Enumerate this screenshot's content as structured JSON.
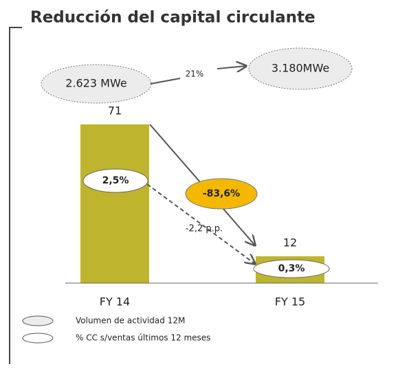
{
  "chart_data": {
    "type": "bar",
    "title": "Reducción del capital circulante",
    "categories": [
      "FY 14",
      "FY 15"
    ],
    "values": [
      71,
      12
    ],
    "color": "#bfb42e",
    "annotations": {
      "volume_fy14": "2.623 MWe",
      "volume_fy15": "3.180MWe",
      "volume_growth": "21%",
      "reduction": "-83,6%",
      "ratio_fy14": "2,5%",
      "ratio_fy15": "0,3%",
      "ratio_change": "-2,2 p.p."
    },
    "legend": [
      "Volumen de actividad 12M",
      "% CC s/ventas últimos 12 meses"
    ]
  }
}
